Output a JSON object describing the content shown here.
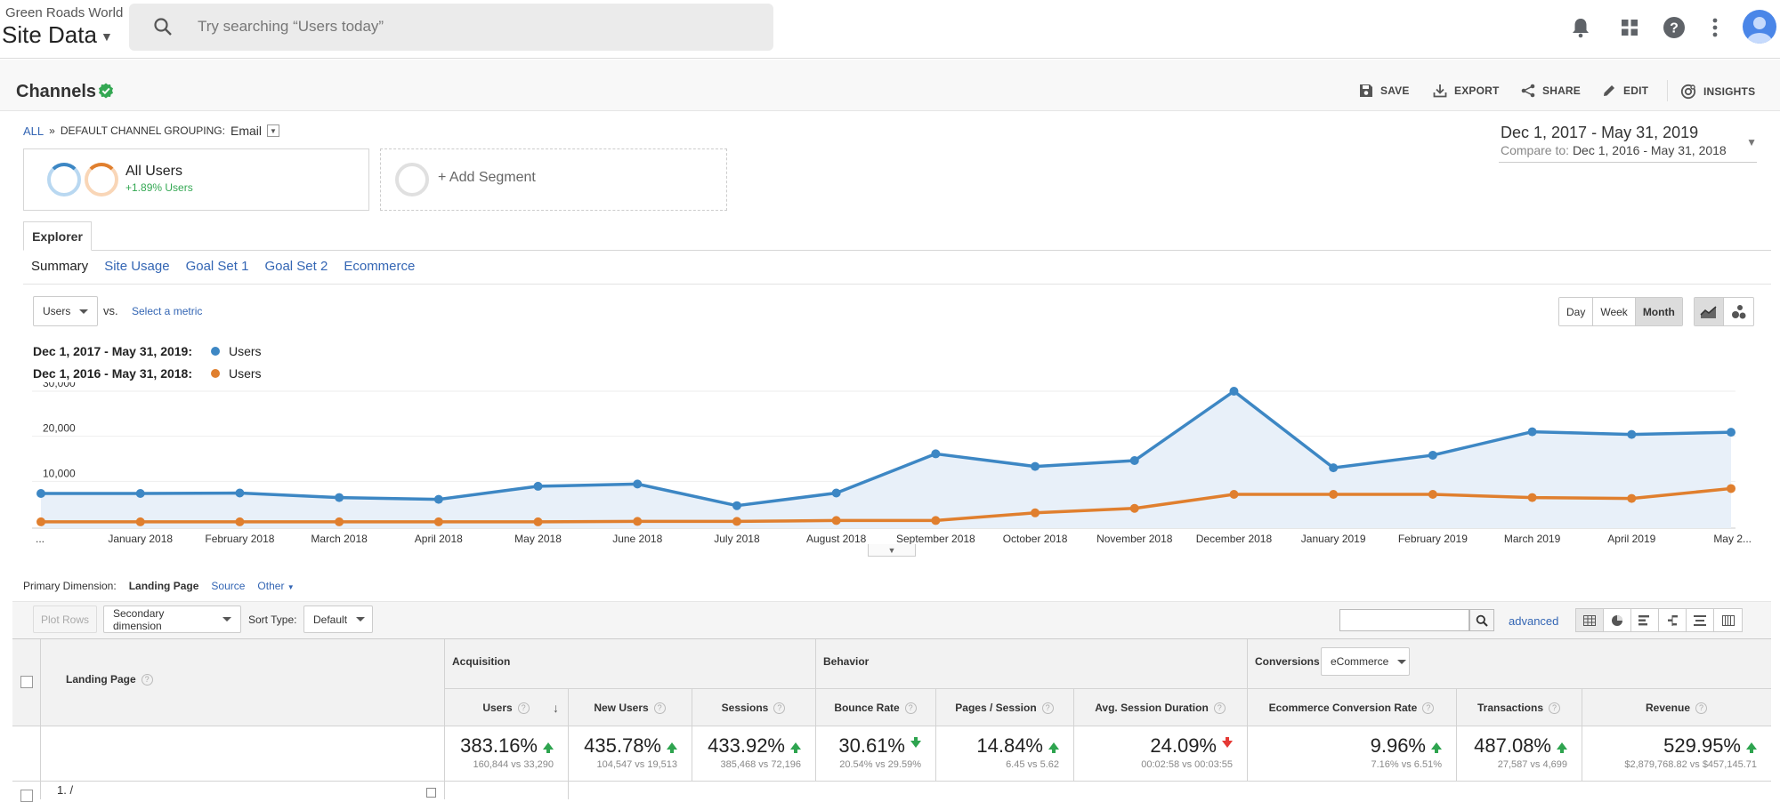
{
  "header": {
    "account": "Green Roads World",
    "property": "Site Data",
    "search_placeholder": "Try searching “Users today”"
  },
  "page": {
    "title": "Channels",
    "toolbar": {
      "save": "SAVE",
      "export": "EXPORT",
      "share": "SHARE",
      "edit": "EDIT",
      "insights": "INSIGHTS"
    },
    "breadcrumb": {
      "all": "ALL",
      "sep": "»",
      "grouping_label": "DEFAULT CHANNEL GROUPING:",
      "grouping_value": "Email"
    },
    "date_range": {
      "main": "Dec 1, 2017 - May 31, 2019",
      "compare_label": "Compare to:",
      "compare_value": "Dec 1, 2016 - May 31, 2018"
    },
    "segments": {
      "seg1_name": "All Users",
      "seg1_delta": "+1.89% Users",
      "add_segment": "+ Add Segment"
    },
    "tabs": {
      "explorer": "Explorer",
      "subtabs": [
        "Summary",
        "Site Usage",
        "Goal Set 1",
        "Goal Set 2",
        "Ecommerce"
      ]
    },
    "chart_controls": {
      "metric": "Users",
      "vs": "vs.",
      "select_metric": "Select a metric",
      "granularity": [
        "Day",
        "Week",
        "Month"
      ],
      "active_granularity": "Month"
    },
    "legend": [
      {
        "range": "Dec 1, 2017 - May 31, 2019:",
        "metric": "Users",
        "color": "#3d87c4"
      },
      {
        "range": "Dec 1, 2016 - May 31, 2018:",
        "metric": "Users",
        "color": "#e07f2e"
      }
    ]
  },
  "chart_data": {
    "type": "line",
    "categories": [
      "...",
      "January 2018",
      "February 2018",
      "March 2018",
      "April 2018",
      "May 2018",
      "June 2018",
      "July 2018",
      "August 2018",
      "September 2018",
      "October 2018",
      "November 2018",
      "December 2018",
      "January 2019",
      "February 2019",
      "March 2019",
      "April 2019",
      "May 2..."
    ],
    "ylim": [
      0,
      30000
    ],
    "yticks": [
      "30,000",
      "20,000",
      "10,000"
    ],
    "series": [
      {
        "name": "Users",
        "color": "#3d87c4",
        "values": [
          7300,
          7300,
          7400,
          6400,
          6000,
          8900,
          9400,
          4600,
          7400,
          16100,
          13300,
          14600,
          30000,
          13000,
          15800,
          21000,
          20400,
          20900
        ]
      },
      {
        "name": "Users",
        "color": "#e07f2e",
        "values": [
          1000,
          1000,
          1000,
          1000,
          1000,
          1000,
          1100,
          1100,
          1300,
          1300,
          3000,
          4000,
          7100,
          7100,
          7100,
          6400,
          6200,
          8400
        ]
      }
    ]
  },
  "dimensions": {
    "label": "Primary Dimension:",
    "current": "Landing Page",
    "options": [
      "Source",
      "Other"
    ]
  },
  "table_tools": {
    "plot_rows": "Plot Rows",
    "secondary": "Secondary dimension",
    "sort_label": "Sort Type:",
    "sort_value": "Default",
    "advanced": "advanced"
  },
  "table": {
    "first_col": "Landing Page",
    "groups": {
      "acquisition": "Acquisition",
      "behavior": "Behavior",
      "conversions": "Conversions",
      "conversion_select": "eCommerce"
    },
    "columns": [
      {
        "label": "Users",
        "big": "383.16%",
        "small": "160,844 vs 33,290",
        "dir": "up"
      },
      {
        "label": "New Users",
        "big": "435.78%",
        "small": "104,547 vs 19,513",
        "dir": "up"
      },
      {
        "label": "Sessions",
        "big": "433.92%",
        "small": "385,468 vs 72,196",
        "dir": "up"
      },
      {
        "label": "Bounce Rate",
        "big": "30.61%",
        "small": "20.54% vs 29.59%",
        "dir": "down-good"
      },
      {
        "label": "Pages / Session",
        "big": "14.84%",
        "small": "6.45 vs 5.62",
        "dir": "up"
      },
      {
        "label": "Avg. Session Duration",
        "big": "24.09%",
        "small": "00:02:58 vs 00:03:55",
        "dir": "down"
      },
      {
        "label": "Ecommerce Conversion Rate",
        "big": "9.96%",
        "small": "7.16% vs 6.51%",
        "dir": "up"
      },
      {
        "label": "Transactions",
        "big": "487.08%",
        "small": "27,587 vs 4,699",
        "dir": "up"
      },
      {
        "label": "Revenue",
        "big": "529.95%",
        "small": "$2,879,768.82 vs $457,145.71",
        "dir": "up"
      }
    ],
    "first_row_label": "1. /"
  }
}
